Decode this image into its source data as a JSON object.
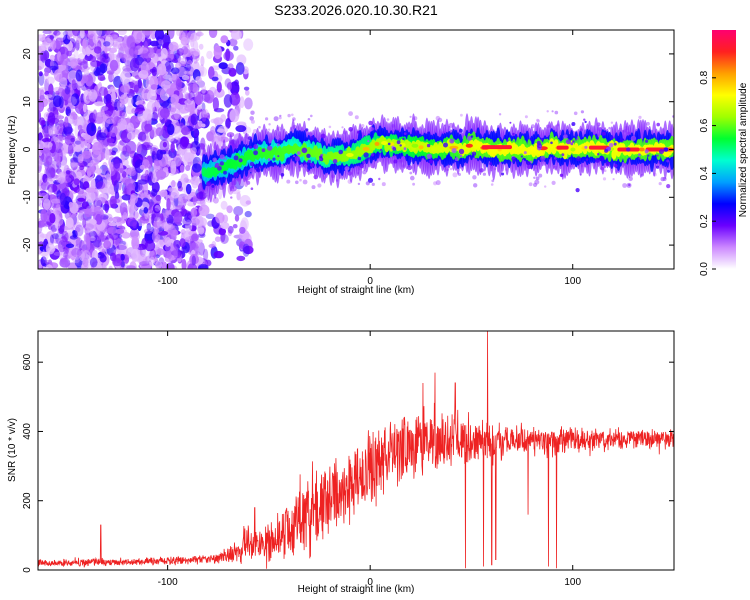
{
  "chart_data": [
    {
      "type": "heatmap",
      "title": "S233.2026.020.10.30.R21",
      "xlabel": "Height of straight line (km)",
      "ylabel": "Frequency (Hz)",
      "xlim": [
        -164,
        150
      ],
      "ylim": [
        -25,
        25
      ],
      "xticks": [
        -100,
        0,
        100
      ],
      "xtick_labels": [
        "-100",
        "0",
        "100"
      ],
      "yticks": [
        -20,
        -10,
        0,
        10,
        20
      ],
      "ytick_labels": [
        "-20",
        "-10",
        "0",
        "10",
        "20"
      ],
      "noise_region_x": [
        -164,
        -60
      ],
      "signal_start_x": -82,
      "ridge": {
        "x": [
          -82,
          -75,
          -68,
          -60,
          -52,
          -45,
          -38,
          -30,
          -22,
          -15,
          -8,
          0,
          5,
          12,
          20,
          30,
          40,
          45,
          50,
          60,
          70,
          80,
          90,
          100,
          110,
          120,
          130,
          140,
          150
        ],
        "freq": [
          -5,
          -4,
          -3,
          -1.5,
          -0.5,
          -1,
          0.5,
          -0.5,
          -1.5,
          -1.5,
          -1,
          0.5,
          1.5,
          1,
          1,
          0,
          0.5,
          0,
          1,
          0,
          0,
          0,
          0.5,
          0,
          0.5,
          0,
          0,
          0,
          0
        ]
      },
      "colorbar": {
        "label": "Normalized spectral amplitude",
        "range": [
          0,
          1
        ],
        "ticks": [
          0.0,
          0.2,
          0.4,
          0.6,
          0.8
        ],
        "tick_labels": [
          "0.0",
          "0.2",
          "0.4",
          "0.6",
          "0.8"
        ],
        "colors": [
          "#ffffff",
          "#cc88ff",
          "#6a00ff",
          "#0000ff",
          "#00a0ff",
          "#00ffd0",
          "#00ff30",
          "#a0ff00",
          "#ffff00",
          "#ffa000",
          "#ff2020",
          "#ff0070"
        ]
      }
    },
    {
      "type": "line",
      "xlabel": "Height of straight line (km)",
      "ylabel": "SNR (10 * v/v)",
      "xlim": [
        -164,
        150
      ],
      "ylim": [
        0,
        690
      ],
      "xticks": [
        -100,
        0,
        100
      ],
      "xtick_labels": [
        "-100",
        "0",
        "100"
      ],
      "yticks": [
        0,
        200,
        400,
        600
      ],
      "ytick_labels": [
        "0",
        "200",
        "400",
        "600"
      ],
      "color": "#ee2222",
      "series": [
        {
          "name": "SNR",
          "x": [
            -164,
            -140,
            -133,
            -130,
            -110,
            -90,
            -80,
            -75,
            -70,
            -65,
            -60,
            -55,
            -50,
            -45,
            -40,
            -35,
            -30,
            -25,
            -20,
            -15,
            -10,
            -5,
            0,
            5,
            10,
            15,
            20,
            25,
            30,
            35,
            40,
            45,
            50,
            55,
            60,
            65,
            70,
            75,
            80,
            85,
            90,
            100,
            110,
            120,
            130,
            140,
            150
          ],
          "mean": [
            20,
            22,
            25,
            22,
            25,
            28,
            30,
            35,
            45,
            60,
            80,
            70,
            80,
            95,
            115,
            145,
            170,
            190,
            215,
            230,
            250,
            270,
            290,
            310,
            330,
            350,
            360,
            365,
            370,
            370,
            370,
            370,
            370,
            375,
            375,
            370,
            370,
            375,
            370,
            370,
            370,
            375,
            375,
            380,
            380,
            375,
            380
          ],
          "spread": [
            10,
            10,
            10,
            10,
            10,
            12,
            12,
            15,
            25,
            40,
            55,
            50,
            55,
            60,
            70,
            80,
            90,
            95,
            100,
            100,
            105,
            105,
            105,
            105,
            100,
            95,
            90,
            85,
            80,
            75,
            70,
            65,
            60,
            55,
            50,
            50,
            45,
            45,
            40,
            40,
            40,
            35,
            30,
            30,
            30,
            30,
            25
          ],
          "spikes": [
            {
              "x": -133,
              "y": 130
            },
            {
              "x": -57,
              "y": 180
            },
            {
              "x": 26,
              "y": 540
            },
            {
              "x": 32,
              "y": 570
            },
            {
              "x": 42,
              "y": 540
            },
            {
              "x": 58,
              "y": 690
            },
            {
              "x": 47,
              "y": 5
            },
            {
              "x": 56,
              "y": 10
            },
            {
              "x": 60,
              "y": 15
            },
            {
              "x": 62,
              "y": 30
            },
            {
              "x": 88,
              "y": 10
            },
            {
              "x": 92,
              "y": 5
            },
            {
              "x": 78,
              "y": 160
            }
          ]
        }
      ]
    }
  ]
}
